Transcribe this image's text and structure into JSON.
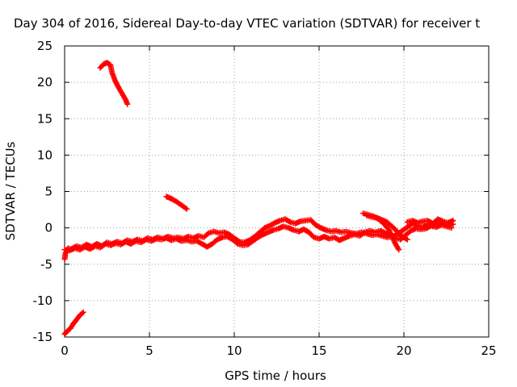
{
  "chart_data": {
    "type": "scatter",
    "title": "Day 304 of 2016, Sidereal Day-to-day VTEC variation (SDTVAR) for receiver t",
    "xlabel": "GPS time / hours",
    "ylabel": "SDTVAR / TECUs",
    "xlim": [
      0,
      25
    ],
    "ylim": [
      -15,
      25
    ],
    "xticks": [
      0,
      5,
      10,
      15,
      20,
      25
    ],
    "yticks": [
      -15,
      -10,
      -5,
      0,
      5,
      10,
      15,
      20,
      25
    ],
    "grid": true,
    "marker": "plus",
    "color": "#ff0000",
    "segments": [
      [
        [
          0.0,
          -14.6
        ],
        [
          0.15,
          -14.2
        ],
        [
          0.35,
          -13.8
        ],
        [
          0.5,
          -13.2
        ],
        [
          0.65,
          -12.8
        ],
        [
          0.8,
          -12.3
        ],
        [
          0.95,
          -11.9
        ],
        [
          1.1,
          -11.6
        ]
      ],
      [
        [
          0.0,
          -4.3
        ],
        [
          0.05,
          -3.5
        ],
        [
          0.2,
          -2.8
        ],
        [
          0.4,
          -2.9
        ],
        [
          0.7,
          -2.5
        ],
        [
          1.0,
          -2.7
        ],
        [
          1.3,
          -2.3
        ],
        [
          1.6,
          -2.6
        ],
        [
          1.9,
          -2.2
        ],
        [
          2.2,
          -2.5
        ],
        [
          2.5,
          -2.0
        ],
        [
          2.8,
          -2.2
        ],
        [
          3.1,
          -1.9
        ],
        [
          3.4,
          -2.1
        ],
        [
          3.7,
          -1.7
        ],
        [
          4.0,
          -1.9
        ],
        [
          4.3,
          -1.6
        ],
        [
          4.6,
          -1.8
        ],
        [
          4.9,
          -1.4
        ],
        [
          5.2,
          -1.6
        ],
        [
          5.5,
          -1.3
        ],
        [
          5.8,
          -1.5
        ],
        [
          6.1,
          -1.2
        ],
        [
          6.4,
          -1.4
        ],
        [
          6.7,
          -1.3
        ],
        [
          7.0,
          -1.5
        ],
        [
          7.3,
          -1.2
        ],
        [
          7.6,
          -1.4
        ],
        [
          7.9,
          -1.1
        ],
        [
          8.2,
          -1.3
        ],
        [
          8.5,
          -0.7
        ],
        [
          8.8,
          -0.5
        ],
        [
          9.1,
          -0.7
        ],
        [
          9.4,
          -0.6
        ],
        [
          9.7,
          -0.9
        ],
        [
          10.0,
          -1.4
        ],
        [
          10.3,
          -1.9
        ],
        [
          10.6,
          -2.0
        ],
        [
          10.9,
          -1.7
        ],
        [
          11.2,
          -1.2
        ],
        [
          11.5,
          -0.6
        ],
        [
          11.8,
          0.0
        ],
        [
          12.1,
          0.3
        ],
        [
          12.4,
          0.7
        ],
        [
          12.7,
          1.0
        ],
        [
          13.0,
          1.2
        ],
        [
          13.3,
          0.8
        ],
        [
          13.6,
          0.6
        ],
        [
          13.9,
          0.9
        ],
        [
          14.2,
          1.0
        ],
        [
          14.5,
          1.1
        ],
        [
          14.8,
          0.4
        ],
        [
          15.1,
          0.0
        ],
        [
          15.4,
          -0.3
        ],
        [
          15.7,
          -0.5
        ],
        [
          16.0,
          -0.4
        ],
        [
          16.3,
          -0.6
        ],
        [
          16.6,
          -0.5
        ],
        [
          16.9,
          -0.7
        ],
        [
          17.2,
          -0.8
        ],
        [
          17.5,
          -0.6
        ],
        [
          17.8,
          -0.8
        ],
        [
          18.1,
          -1.0
        ],
        [
          18.4,
          -0.9
        ],
        [
          18.7,
          -1.1
        ],
        [
          19.0,
          -1.3
        ],
        [
          19.3,
          -1.2
        ],
        [
          19.6,
          -0.9
        ],
        [
          19.9,
          -0.4
        ],
        [
          20.2,
          0.1
        ],
        [
          20.5,
          0.6
        ],
        [
          20.8,
          0.3
        ],
        [
          21.1,
          0.1
        ],
        [
          21.4,
          0.4
        ],
        [
          21.7,
          0.2
        ],
        [
          22.0,
          0.7
        ],
        [
          22.3,
          0.5
        ],
        [
          22.6,
          0.3
        ],
        [
          22.9,
          0.5
        ]
      ],
      [
        [
          0.0,
          -3.0
        ],
        [
          0.3,
          -3.1
        ],
        [
          0.6,
          -2.8
        ],
        [
          0.9,
          -3.0
        ],
        [
          1.2,
          -2.6
        ],
        [
          1.5,
          -2.9
        ],
        [
          1.8,
          -2.5
        ],
        [
          2.1,
          -2.7
        ],
        [
          2.4,
          -2.2
        ],
        [
          2.7,
          -2.4
        ],
        [
          3.0,
          -2.1
        ],
        [
          3.3,
          -2.3
        ],
        [
          3.6,
          -1.9
        ],
        [
          3.9,
          -2.2
        ],
        [
          4.2,
          -1.8
        ],
        [
          4.5,
          -2.0
        ],
        [
          4.8,
          -1.6
        ],
        [
          5.1,
          -1.8
        ],
        [
          5.4,
          -1.5
        ],
        [
          5.7,
          -1.6
        ],
        [
          6.0,
          -1.4
        ],
        [
          6.3,
          -1.7
        ],
        [
          6.6,
          -1.5
        ],
        [
          6.9,
          -1.8
        ],
        [
          7.2,
          -1.7
        ],
        [
          7.5,
          -1.9
        ],
        [
          7.8,
          -1.8
        ],
        [
          8.1,
          -2.2
        ],
        [
          8.4,
          -2.6
        ],
        [
          8.7,
          -2.2
        ],
        [
          9.0,
          -1.6
        ],
        [
          9.3,
          -1.3
        ],
        [
          9.6,
          -1.2
        ],
        [
          9.9,
          -1.6
        ],
        [
          10.2,
          -2.2
        ],
        [
          10.5,
          -2.4
        ],
        [
          10.8,
          -2.3
        ],
        [
          11.1,
          -1.8
        ],
        [
          11.4,
          -1.3
        ],
        [
          11.7,
          -0.9
        ],
        [
          12.0,
          -0.6
        ],
        [
          12.3,
          -0.3
        ],
        [
          12.6,
          -0.1
        ],
        [
          12.9,
          0.2
        ],
        [
          13.2,
          0.0
        ],
        [
          13.5,
          -0.3
        ],
        [
          13.8,
          -0.5
        ],
        [
          14.1,
          -0.2
        ],
        [
          14.4,
          -0.6
        ],
        [
          14.7,
          -1.3
        ],
        [
          15.0,
          -1.5
        ],
        [
          15.3,
          -1.2
        ],
        [
          15.6,
          -1.5
        ],
        [
          15.9,
          -1.3
        ],
        [
          16.2,
          -1.7
        ],
        [
          16.5,
          -1.4
        ],
        [
          16.8,
          -1.1
        ],
        [
          17.1,
          -0.9
        ],
        [
          17.4,
          -1.1
        ],
        [
          17.7,
          -0.6
        ],
        [
          18.0,
          -0.4
        ],
        [
          18.3,
          -0.6
        ],
        [
          18.6,
          -0.4
        ],
        [
          18.9,
          -0.7
        ],
        [
          19.2,
          -1.0
        ],
        [
          19.5,
          -1.4
        ],
        [
          19.8,
          -1.6
        ],
        [
          20.1,
          -1.0
        ],
        [
          20.4,
          -0.4
        ],
        [
          20.7,
          -0.1
        ],
        [
          21.0,
          -0.2
        ],
        [
          21.3,
          -0.1
        ],
        [
          21.6,
          0.3
        ],
        [
          21.9,
          0.1
        ],
        [
          22.2,
          0.4
        ],
        [
          22.5,
          0.2
        ],
        [
          22.8,
          0.0
        ]
      ],
      [
        [
          2.1,
          22.0
        ],
        [
          2.3,
          22.5
        ],
        [
          2.5,
          22.7
        ],
        [
          2.7,
          22.4
        ],
        [
          2.8,
          21.3
        ],
        [
          3.0,
          20.1
        ],
        [
          3.2,
          19.2
        ],
        [
          3.4,
          18.4
        ],
        [
          3.6,
          17.6
        ],
        [
          3.7,
          17.0
        ]
      ],
      [
        [
          6.0,
          4.3
        ],
        [
          6.3,
          4.0
        ],
        [
          6.6,
          3.6
        ],
        [
          6.9,
          3.1
        ],
        [
          7.2,
          2.6
        ]
      ],
      [
        [
          17.6,
          2.0
        ],
        [
          17.9,
          1.8
        ],
        [
          18.2,
          1.6
        ],
        [
          18.5,
          1.2
        ],
        [
          18.8,
          0.6
        ],
        [
          19.1,
          -0.2
        ],
        [
          19.3,
          -1.2
        ],
        [
          19.5,
          -2.2
        ],
        [
          19.7,
          -3.0
        ]
      ],
      [
        [
          17.8,
          1.7
        ],
        [
          18.1,
          1.5
        ],
        [
          18.4,
          1.4
        ],
        [
          18.7,
          1.1
        ],
        [
          19.0,
          0.8
        ],
        [
          19.3,
          0.2
        ],
        [
          19.6,
          -0.5
        ],
        [
          19.9,
          -1.2
        ],
        [
          20.2,
          -1.6
        ]
      ],
      [
        [
          20.2,
          0.8
        ],
        [
          20.5,
          1.0
        ],
        [
          20.8,
          0.7
        ],
        [
          21.1,
          0.9
        ],
        [
          21.4,
          1.0
        ],
        [
          21.7,
          0.6
        ],
        [
          22.0,
          1.2
        ],
        [
          22.3,
          0.9
        ],
        [
          22.6,
          0.7
        ],
        [
          22.9,
          1.0
        ]
      ]
    ]
  }
}
